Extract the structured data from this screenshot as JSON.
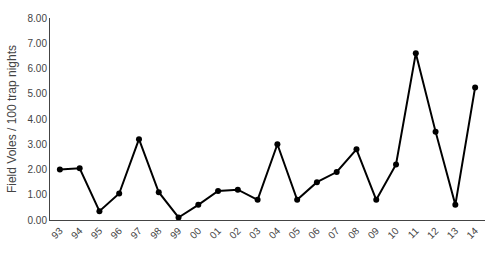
{
  "chart_data": {
    "type": "line",
    "categories": [
      "93",
      "94",
      "95",
      "96",
      "97",
      "98",
      "99",
      "00",
      "01",
      "02",
      "03",
      "04",
      "05",
      "06",
      "07",
      "08",
      "09",
      "10",
      "11",
      "12",
      "13",
      "14"
    ],
    "values": [
      2.0,
      2.05,
      0.35,
      1.05,
      3.2,
      1.1,
      0.1,
      0.6,
      1.15,
      1.2,
      0.8,
      3.0,
      0.8,
      1.5,
      1.9,
      2.8,
      0.8,
      2.2,
      6.6,
      3.5,
      0.6,
      5.25
    ],
    "ylabel": "Field Voles / 100 trap nights",
    "color": "#000000",
    "marker": "circle",
    "ylim": [
      0.0,
      8.0
    ],
    "yticks": [
      {
        "value": 0.0,
        "label": "0.00"
      },
      {
        "value": 1.0,
        "label": "1.00"
      },
      {
        "value": 2.0,
        "label": "2.00"
      },
      {
        "value": 3.0,
        "label": "3.00"
      },
      {
        "value": 4.0,
        "label": "4.00"
      },
      {
        "value": 5.0,
        "label": "5.00"
      },
      {
        "value": 6.0,
        "label": "6.00"
      },
      {
        "value": 7.0,
        "label": "7.00"
      },
      {
        "value": 8.0,
        "label": "8.00"
      }
    ],
    "grid": false
  }
}
